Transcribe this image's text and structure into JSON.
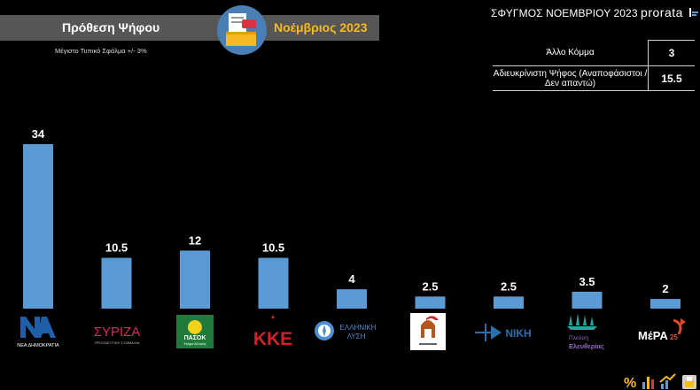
{
  "header": {
    "title": "Πρόθεση Ψήφου",
    "month": "Νοέμβριος 2023",
    "error_note": "Μέγιστο Τυπικό Σφάλμα +/- 3%",
    "brand_title": "ΣΦΥΓΜΟΣ ΝΟΕΜΒΡΙΟΥ 2023",
    "brand_name": "prorata"
  },
  "others_table": {
    "rows": [
      {
        "label": "Άλλο Κόμμα",
        "value": "3"
      },
      {
        "label": "Αδιευκρίνιστη Ψήφος (Αναποφάσιστοι / Δεν απαντώ)",
        "value": "15.5"
      }
    ]
  },
  "colors": {
    "bar": "#5b9bd5",
    "accent_yellow": "#f5b923",
    "title_bg": "#565656",
    "nd_blue": "#1e5fa8",
    "syriza_red": "#d32f5a",
    "pasok_green": "#1f7a3c",
    "kke_red": "#d42027",
    "niki_blue": "#2a6fb0",
    "mera_red": "#e04a2a"
  },
  "chart_data": {
    "type": "bar",
    "categories": [
      "ΝΔ",
      "ΣΥΡΙΖΑ",
      "ΠΑΣΟΚ",
      "ΚΚΕ",
      "Ελληνική Λύση",
      "Σπαρτιάτες",
      "Νίκη",
      "Πλεύση Ελευθερίας",
      "ΜέΡΑ25"
    ],
    "values": [
      34,
      10.5,
      12,
      10.5,
      4,
      2.5,
      2.5,
      3.5,
      2
    ],
    "value_labels": [
      "34",
      "10.5",
      "12",
      "10.5",
      "4",
      "2.5",
      "2.5",
      "3.5",
      "2"
    ],
    "title": "Πρόθεση Ψήφου",
    "xlabel": "",
    "ylabel": "",
    "ylim": [
      0,
      34
    ],
    "grid": false,
    "legend": "none",
    "logo_text": {
      "nd": "ΝΕΑ ΔΗΜΟΚΡΑΤΙΑ",
      "syriza": "ΣΥΡΙΖΑ",
      "syriza_sub": "ΠΡΟΟΔΕΥΤΙΚΗ ΣΥΜΜΑΧΙΑ",
      "pasok": "ΠΑΣΟΚ",
      "pasok_sub": "Κίνημα Αλλαγής",
      "kke": "ΚΚΕ",
      "elliniki_lysi_top": "ΕΛΛΗΝΙΚΗ",
      "elliniki_lysi_bottom": "ΛΥΣΗ",
      "niki": "ΝΙΚΗ",
      "plefsi_top": "Πλεύση",
      "plefsi_bottom": "Ελευθερίας",
      "mera": "ΜέΡΑ",
      "mera_num": "25"
    }
  }
}
